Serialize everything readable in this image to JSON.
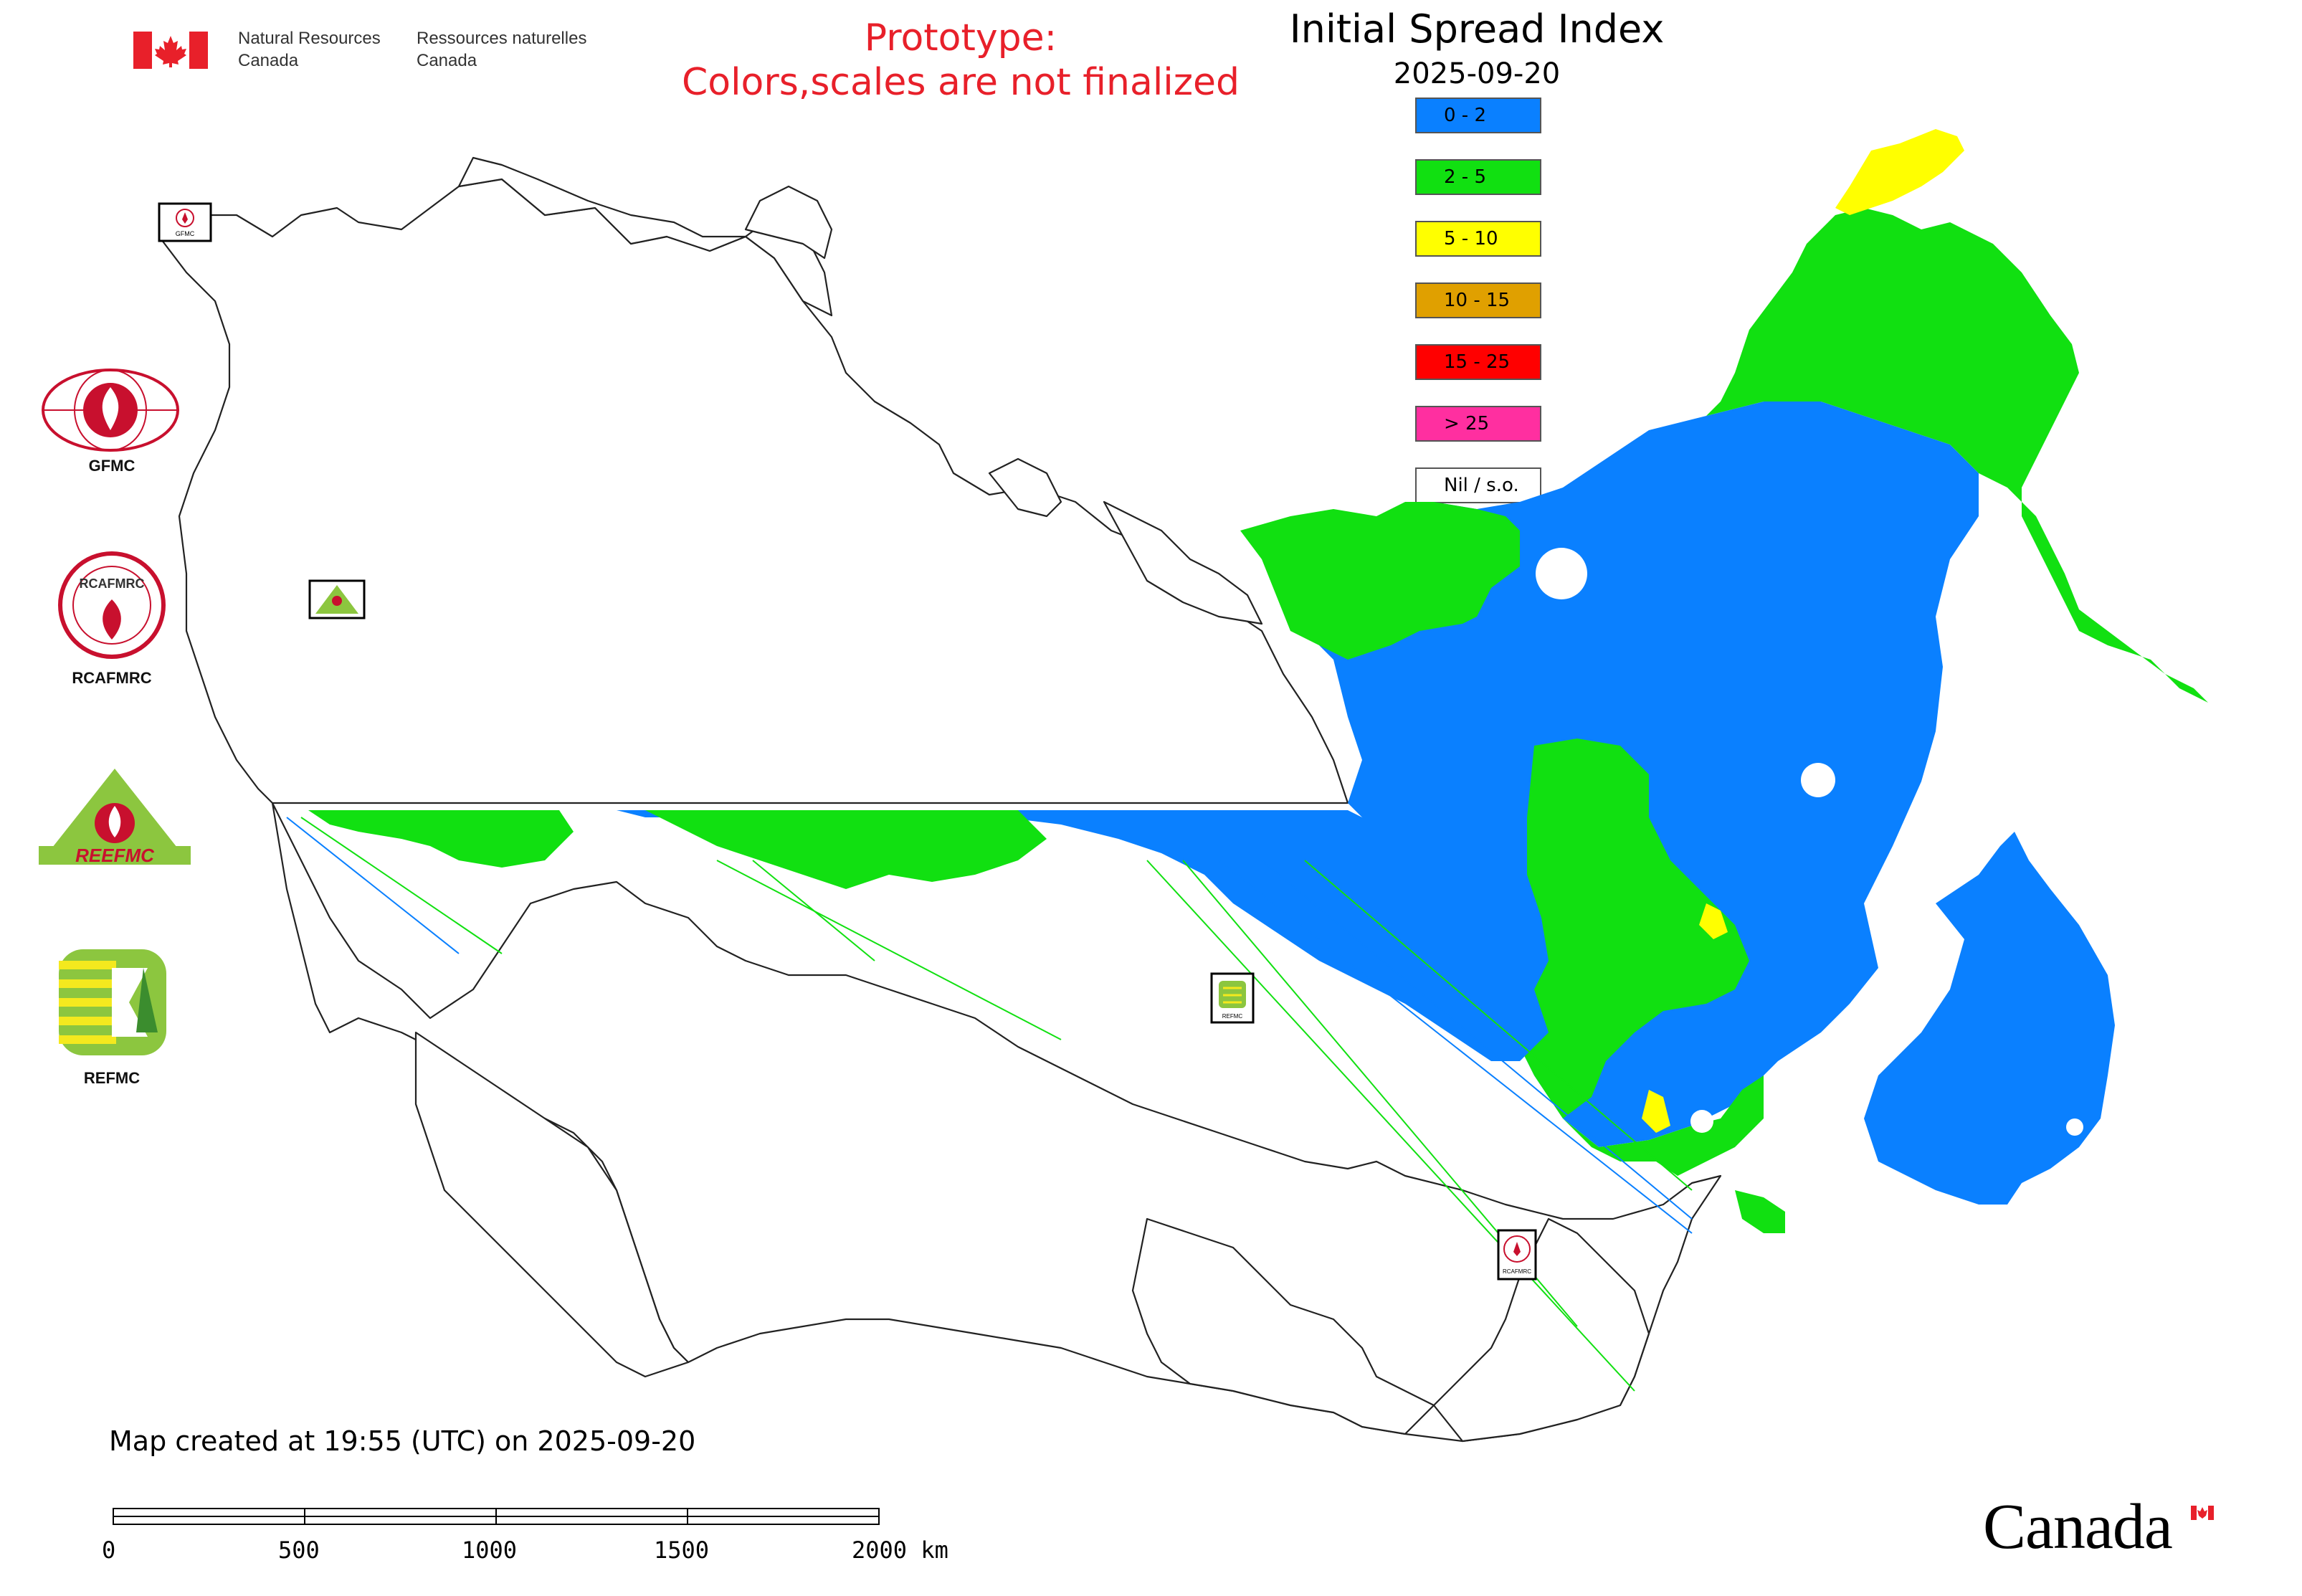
{
  "header": {
    "org_en": "Natural Resources\nCanada",
    "org_fr": "Ressources naturelles\nCanada",
    "prototype": "Prototype:",
    "prototype_note": "Colors,scales are not finalized"
  },
  "map": {
    "title": "Initial Spread Index",
    "date": "2025-09-20"
  },
  "legend": [
    {
      "label": "0 - 2",
      "color": "#0a80ff"
    },
    {
      "label": "2 - 5",
      "color": "#11e011"
    },
    {
      "label": "5 - 10",
      "color": "#ffff00"
    },
    {
      "label": "10 - 15",
      "color": "#e0a000"
    },
    {
      "label": "15 - 25",
      "color": "#ff0000"
    },
    {
      "label": "> 25",
      "color": "#ff2fa0"
    },
    {
      "label": "Nil / s.o.",
      "color": "#ffffff"
    }
  ],
  "side_logos": [
    {
      "label": "GFMC",
      "icon": "gfmc-logo"
    },
    {
      "label": "RCAFMRC",
      "icon": "rcafmrc-logo"
    },
    {
      "label": "REEFMC",
      "icon": "reefmc-logo"
    },
    {
      "label": "REFMC",
      "icon": "refmc-logo"
    }
  ],
  "map_markers": [
    {
      "label": "GFMC",
      "icon": "gfmc-marker"
    },
    {
      "label": "REEFMC",
      "icon": "reefmc-marker"
    },
    {
      "label": "REFMC",
      "icon": "refmc-marker"
    },
    {
      "label": "RCAFMRC",
      "icon": "rcafmrc-marker"
    }
  ],
  "footer": {
    "created": "Map created at 19:55 (UTC) on 2025-09-20",
    "wordmark": "Canada",
    "scale_labels": [
      "0",
      "500",
      "1000",
      "1500",
      "2000 km"
    ]
  }
}
